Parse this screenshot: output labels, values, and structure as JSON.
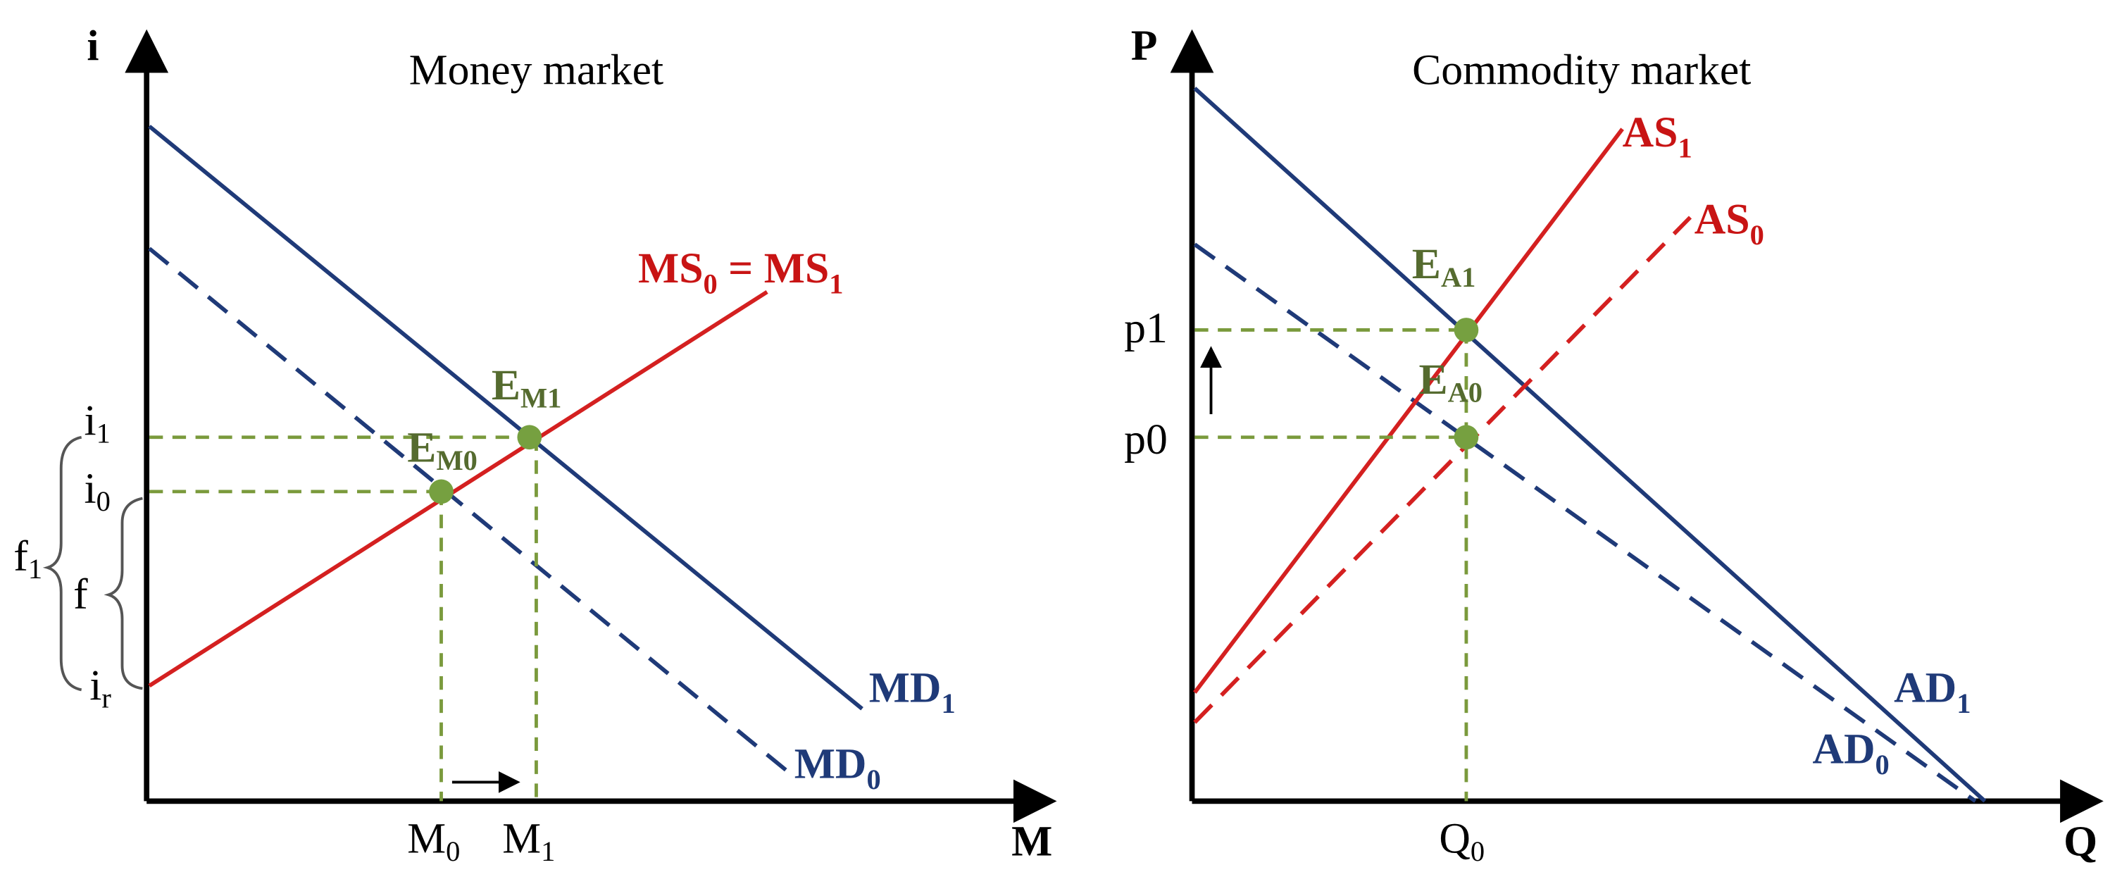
{
  "left": {
    "axis_y": "i",
    "axis_x": "M",
    "title": "Money market",
    "supply": {
      "main": "MS",
      "sub": "0",
      "rest": " = MS",
      "sub2": "1"
    },
    "e_new": {
      "main": "E",
      "sub": "M1"
    },
    "e_old": {
      "main": "E",
      "sub": "M0"
    },
    "i_new": {
      "main": "i",
      "sub": "1"
    },
    "i_old": {
      "main": "i",
      "sub": "0"
    },
    "i_r": {
      "main": "i",
      "sub": "r"
    },
    "f_new": {
      "main": "f",
      "sub": "1"
    },
    "f": "f",
    "demand_new": {
      "main": "MD",
      "sub": "1"
    },
    "demand_old": {
      "main": "MD",
      "sub": "0"
    },
    "m_old": {
      "main": "M",
      "sub": "0"
    },
    "m_new": {
      "main": "M",
      "sub": "1"
    }
  },
  "right": {
    "axis_y": "P",
    "axis_x": "Q",
    "title": "Commodity market",
    "supply_new": {
      "main": "AS",
      "sub": "1"
    },
    "supply_old": {
      "main": "AS",
      "sub": "0"
    },
    "e_new": {
      "main": "E",
      "sub": "A1"
    },
    "e_old": {
      "main": "E",
      "sub": "A0"
    },
    "p_new": "p1",
    "p_old": "p0",
    "demand_new": {
      "main": "AD",
      "sub": "1"
    },
    "demand_old": {
      "main": "AD",
      "sub": "0"
    },
    "q": {
      "main": "Q",
      "sub": "0"
    }
  }
}
